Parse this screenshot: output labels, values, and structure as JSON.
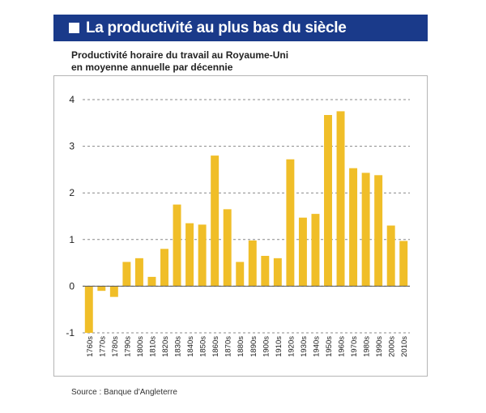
{
  "header": {
    "title": "La productivité au plus bas du siècle"
  },
  "subtitle": {
    "line1": "Productivité horaire du travail au Royaume-Uni",
    "line2": "en moyenne annuelle par décennie"
  },
  "source": "Source : Banque d'Angleterre",
  "colors": {
    "banner": "#1a3a8a",
    "bar": "#f0be28",
    "grid": "#888888"
  },
  "chart_data": {
    "type": "bar",
    "title": "La productivité au plus bas du siècle",
    "categories": [
      "1760s",
      "1770s",
      "1780s",
      "1790s",
      "1800s",
      "1810s",
      "1820s",
      "1830s",
      "1840s",
      "1850s",
      "1860s",
      "1870s",
      "1880s",
      "1890s",
      "1900s",
      "1910s",
      "1920s",
      "1930s",
      "1940s",
      "1950s",
      "1960s",
      "1970s",
      "1980s",
      "1990s",
      "2000s",
      "2010s"
    ],
    "values": [
      -1.0,
      -0.1,
      -0.23,
      0.52,
      0.6,
      0.2,
      0.8,
      1.75,
      1.35,
      1.32,
      2.8,
      1.65,
      0.52,
      0.98,
      0.65,
      0.6,
      2.72,
      1.47,
      1.55,
      3.67,
      3.75,
      2.53,
      2.43,
      2.38,
      1.3,
      0.97
    ],
    "yticks": [
      -1,
      0,
      1,
      2,
      3,
      4
    ],
    "ylim": [
      -1,
      4
    ],
    "grid": true
  }
}
